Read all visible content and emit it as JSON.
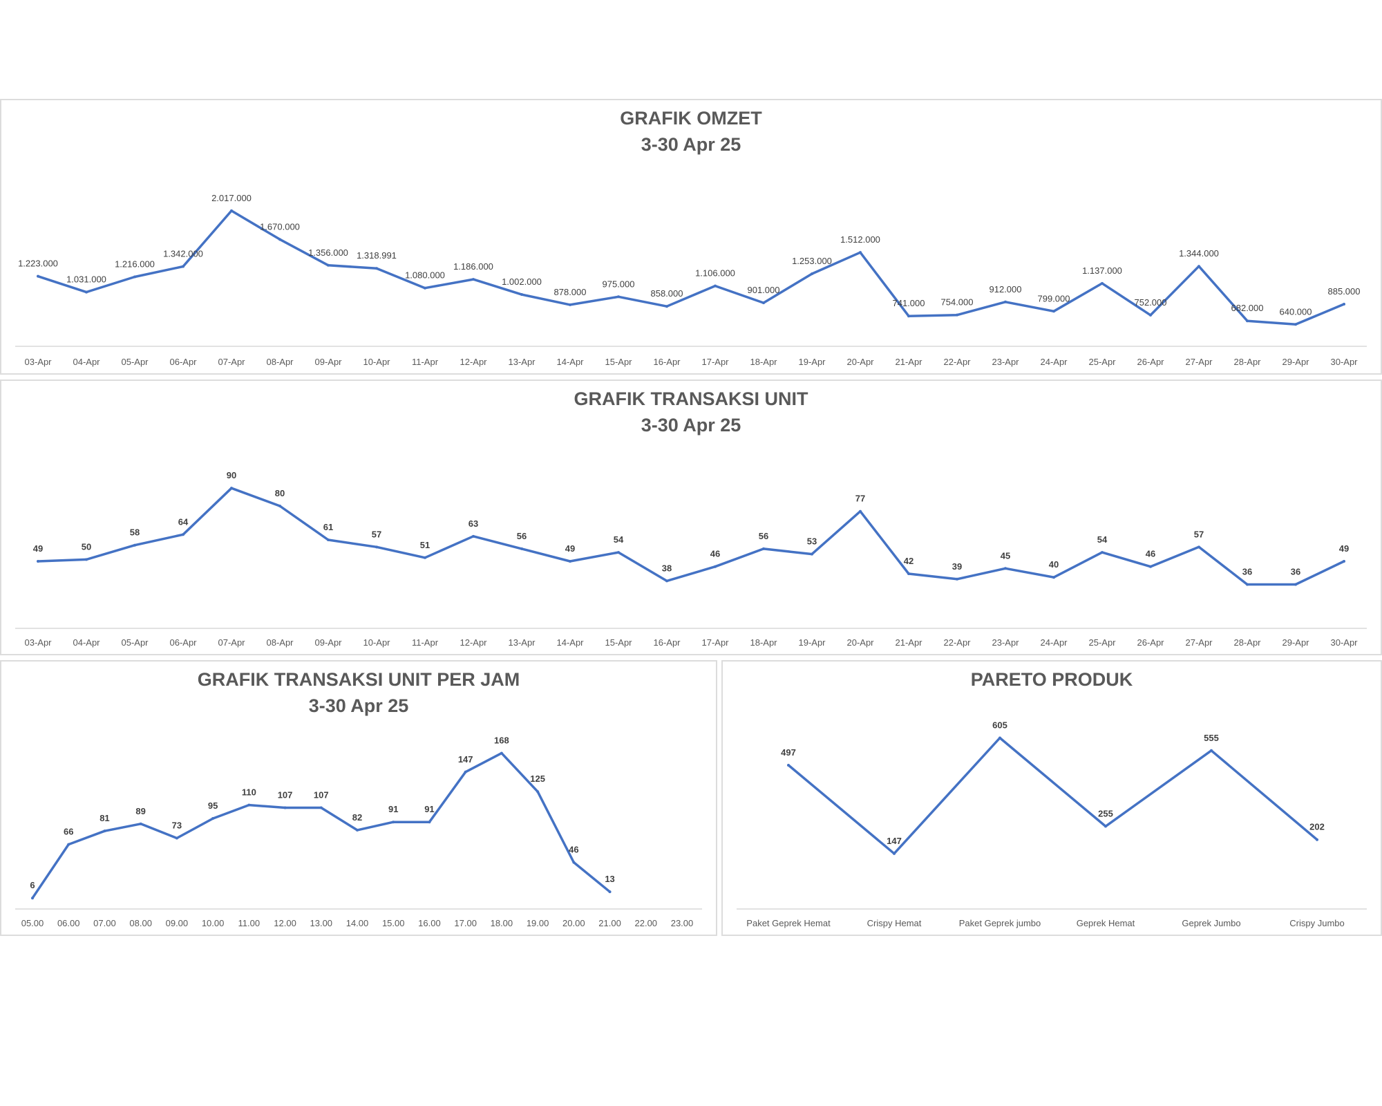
{
  "chart_data": [
    {
      "id": "omzet",
      "type": "line",
      "title": "GRAFIK OMZET",
      "subtitle": "3-30 Apr 25",
      "categories": [
        "03-Apr",
        "04-Apr",
        "05-Apr",
        "06-Apr",
        "07-Apr",
        "08-Apr",
        "09-Apr",
        "10-Apr",
        "11-Apr",
        "12-Apr",
        "13-Apr",
        "14-Apr",
        "15-Apr",
        "16-Apr",
        "17-Apr",
        "18-Apr",
        "19-Apr",
        "20-Apr",
        "21-Apr",
        "22-Apr",
        "23-Apr",
        "24-Apr",
        "25-Apr",
        "26-Apr",
        "27-Apr",
        "28-Apr",
        "29-Apr",
        "30-Apr"
      ],
      "values": [
        1223000,
        1031000,
        1216000,
        1342000,
        2017000,
        1670000,
        1356000,
        1318991,
        1080000,
        1186000,
        1002000,
        878000,
        975000,
        858000,
        1106000,
        901000,
        1253000,
        1512000,
        741000,
        754000,
        912000,
        799000,
        1137000,
        752000,
        1344000,
        682000,
        640000,
        885000
      ],
      "data_labels": [
        "1.223.000",
        "1.031.000",
        "1.216.000",
        "1.342.000",
        "2.017.000",
        "1.670.000",
        "1.356.000",
        "1.318.991",
        "1.080.000",
        "1.186.000",
        "1.002.000",
        "878.000",
        "975.000",
        "858.000",
        "1.106.000",
        "901.000",
        "1.253.000",
        "1.512.000",
        "741.000",
        "754.000",
        "912.000",
        "799.000",
        "1.137.000",
        "752.000",
        "1.344.000",
        "682.000",
        "640.000",
        "885.000"
      ],
      "line_color": "#4472C4",
      "grid": false
    },
    {
      "id": "transaksi",
      "type": "line",
      "title": "GRAFIK TRANSAKSI UNIT",
      "subtitle": "3-30 Apr 25",
      "categories": [
        "03-Apr",
        "04-Apr",
        "05-Apr",
        "06-Apr",
        "07-Apr",
        "08-Apr",
        "09-Apr",
        "10-Apr",
        "11-Apr",
        "12-Apr",
        "13-Apr",
        "14-Apr",
        "15-Apr",
        "16-Apr",
        "17-Apr",
        "18-Apr",
        "19-Apr",
        "20-Apr",
        "21-Apr",
        "22-Apr",
        "23-Apr",
        "24-Apr",
        "25-Apr",
        "26-Apr",
        "27-Apr",
        "28-Apr",
        "29-Apr",
        "30-Apr"
      ],
      "values": [
        49,
        50,
        58,
        64,
        90,
        80,
        61,
        57,
        51,
        63,
        56,
        49,
        54,
        38,
        46,
        56,
        53,
        77,
        42,
        39,
        45,
        40,
        54,
        46,
        57,
        36,
        36,
        49
      ],
      "data_labels": [
        "49",
        "50",
        "58",
        "64",
        "90",
        "80",
        "61",
        "57",
        "51",
        "63",
        "56",
        "49",
        "54",
        "38",
        "46",
        "56",
        "53",
        "77",
        "42",
        "39",
        "45",
        "40",
        "54",
        "46",
        "57",
        "36",
        "36",
        "49"
      ],
      "line_color": "#4472C4",
      "grid": false
    },
    {
      "id": "perjam",
      "type": "line",
      "title": "GRAFIK TRANSAKSI UNIT PER JAM",
      "subtitle": "3-30 Apr 25",
      "categories": [
        "05.00",
        "06.00",
        "07.00",
        "08.00",
        "09.00",
        "10.00",
        "11.00",
        "12.00",
        "13.00",
        "14.00",
        "15.00",
        "16.00",
        "17.00",
        "18.00",
        "19.00",
        "20.00",
        "21.00",
        "22.00",
        "23.00"
      ],
      "values": [
        6,
        66,
        81,
        89,
        73,
        95,
        110,
        107,
        107,
        82,
        91,
        91,
        147,
        168,
        125,
        46,
        13,
        null,
        null
      ],
      "data_labels": [
        "6",
        "66",
        "81",
        "89",
        "73",
        "95",
        "110",
        "107",
        "107",
        "82",
        "91",
        "91",
        "147",
        "168",
        "125",
        "46",
        "13",
        "",
        ""
      ],
      "line_color": "#4472C4",
      "grid": false
    },
    {
      "id": "pareto",
      "type": "line",
      "title": "PARETO PRODUK",
      "subtitle": "",
      "categories": [
        "Paket Geprek Hemat",
        "Crispy Hemat",
        "Paket Geprek jumbo",
        "Geprek Hemat",
        "Geprek Jumbo",
        "Crispy Jumbo"
      ],
      "values": [
        497,
        147,
        605,
        255,
        555,
        202
      ],
      "data_labels": [
        "497",
        "147",
        "605",
        "255",
        "555",
        "202"
      ],
      "line_color": "#4472C4",
      "grid": false
    }
  ]
}
